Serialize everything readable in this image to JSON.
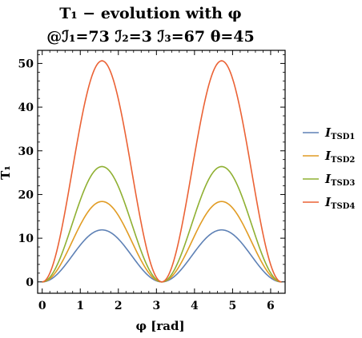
{
  "chart_data": {
    "type": "line",
    "title_line1": "T₁ − evolution with φ",
    "title_line2": "@ℐ₁=73 ℐ₂=3 ℐ₃=67 θ=45",
    "xlabel": "φ [rad]",
    "ylabel": "T₁",
    "xlim": [
      -0.12,
      6.38
    ],
    "ylim": [
      -2.6,
      53.0
    ],
    "xticks": [
      0,
      1,
      2,
      3,
      4,
      5,
      6
    ],
    "yticks": [
      0,
      10,
      20,
      30,
      40,
      50
    ],
    "legend_position": "right",
    "grid": false,
    "series": [
      {
        "name": "I",
        "subscript": "TSD1",
        "color": "#5e81b5",
        "peak": 11.9
      },
      {
        "name": "I",
        "subscript": "TSD2",
        "color": "#e19c24",
        "peak": 18.4
      },
      {
        "name": "I",
        "subscript": "TSD3",
        "color": "#8fb032",
        "peak": 26.4
      },
      {
        "name": "I",
        "subscript": "TSD4",
        "color": "#eb6235",
        "peak": 50.6
      }
    ],
    "x_range": [
      0,
      6.2832
    ],
    "shape": "peak * sin^2(x)"
  }
}
